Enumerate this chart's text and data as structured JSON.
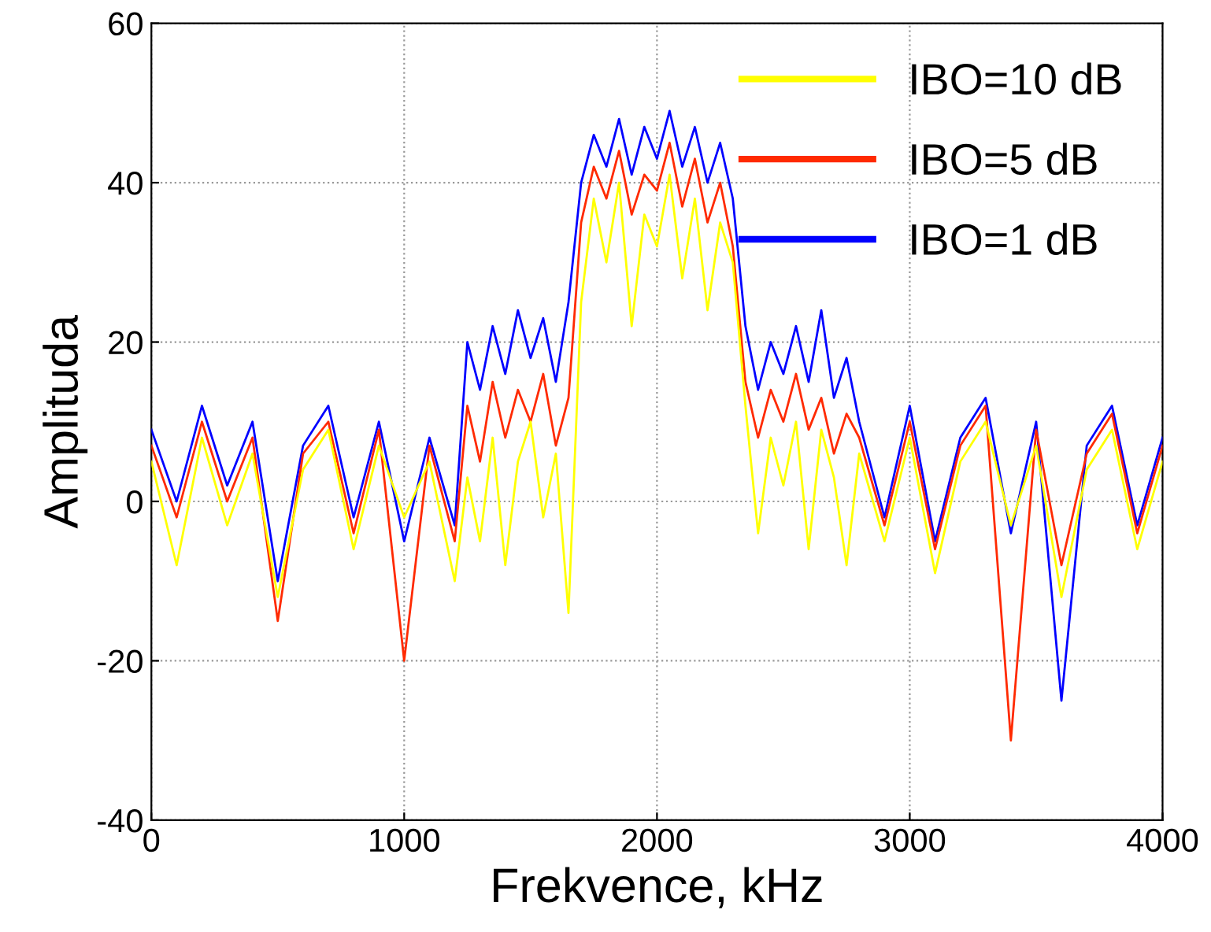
{
  "chart_data": {
    "type": "line",
    "xlabel": "Frekvence, kHz",
    "ylabel": "Amplituda",
    "x": [
      0,
      100,
      200,
      300,
      400,
      500,
      600,
      700,
      800,
      900,
      1000,
      1100,
      1200,
      1250,
      1300,
      1350,
      1400,
      1450,
      1500,
      1550,
      1600,
      1650,
      1700,
      1750,
      1800,
      1850,
      1900,
      1950,
      2000,
      2050,
      2100,
      2150,
      2200,
      2250,
      2300,
      2350,
      2400,
      2450,
      2500,
      2550,
      2600,
      2650,
      2700,
      2750,
      2800,
      2900,
      3000,
      3100,
      3200,
      3300,
      3400,
      3500,
      3600,
      3700,
      3800,
      3900,
      4000
    ],
    "series": [
      {
        "name": "IBO=10 dB",
        "color": "#ffff00",
        "values": [
          5,
          -8,
          8,
          -3,
          6,
          -12,
          4,
          9,
          -6,
          7,
          -2,
          5,
          -10,
          3,
          -5,
          8,
          -8,
          5,
          10,
          -2,
          6,
          -14,
          25,
          38,
          30,
          40,
          22,
          36,
          32,
          41,
          28,
          38,
          24,
          35,
          30,
          12,
          -4,
          8,
          2,
          10,
          -6,
          9,
          3,
          -8,
          6,
          -5,
          8,
          -9,
          5,
          10,
          -3,
          7,
          -12,
          4,
          9,
          -6,
          5
        ]
      },
      {
        "name": "IBO=5 dB",
        "color": "#ff2a00",
        "values": [
          7,
          -2,
          10,
          0,
          8,
          -15,
          6,
          10,
          -4,
          9,
          -20,
          7,
          -5,
          12,
          5,
          15,
          8,
          14,
          10,
          16,
          7,
          13,
          35,
          42,
          38,
          44,
          36,
          41,
          39,
          45,
          37,
          43,
          35,
          40,
          32,
          15,
          8,
          14,
          10,
          16,
          9,
          13,
          6,
          11,
          8,
          -3,
          10,
          -6,
          7,
          12,
          -30,
          9,
          -8,
          6,
          11,
          -4,
          7
        ]
      },
      {
        "name": "IBO=1 dB",
        "color": "#0000ff",
        "values": [
          9,
          0,
          12,
          2,
          10,
          -10,
          7,
          12,
          -2,
          10,
          -5,
          8,
          -3,
          20,
          14,
          22,
          16,
          24,
          18,
          23,
          15,
          25,
          40,
          46,
          42,
          48,
          41,
          47,
          43,
          49,
          42,
          47,
          40,
          45,
          38,
          22,
          14,
          20,
          16,
          22,
          15,
          24,
          13,
          18,
          10,
          -2,
          12,
          -5,
          8,
          13,
          -4,
          10,
          -25,
          7,
          12,
          -3,
          8
        ]
      }
    ],
    "xlim": [
      0,
      4000
    ],
    "xticks": [
      0,
      1000,
      2000,
      3000,
      4000
    ],
    "ylim": [
      -40,
      60
    ],
    "yticks": [
      -40,
      -20,
      0,
      20,
      40,
      60
    ],
    "grid": true,
    "legend": "top right",
    "line_style": "solid",
    "marker": "none"
  }
}
